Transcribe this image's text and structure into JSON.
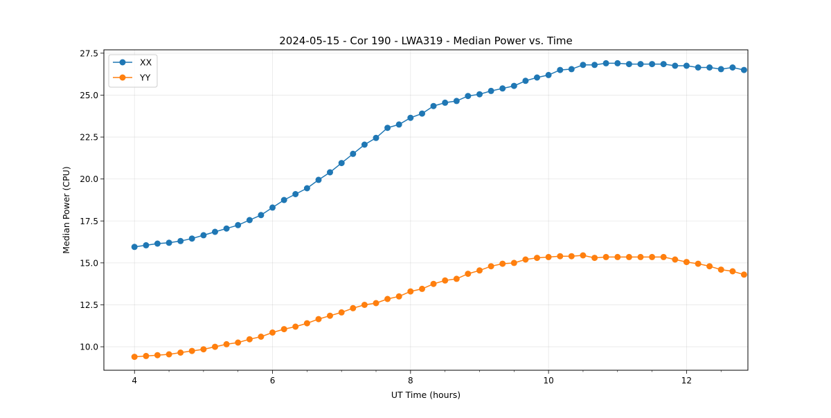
{
  "chart_data": {
    "type": "line",
    "title": "2024-05-15 - Cor 190 - LWA319 - Median Power vs. Time",
    "xlabel": "UT Time (hours)",
    "ylabel": "Median Power (CPU)",
    "xlim": [
      3.556,
      12.889
    ],
    "ylim": [
      8.6,
      27.7
    ],
    "xticks": [
      4,
      6,
      8,
      10,
      12
    ],
    "xtick_labels": [
      "4",
      "6",
      "8",
      "10",
      "12"
    ],
    "yticks": [
      10,
      12.5,
      15,
      17.5,
      20,
      22.5,
      25,
      27.5
    ],
    "ytick_labels": [
      "10.0",
      "12.5",
      "15.0",
      "17.5",
      "20.0",
      "22.5",
      "25.0",
      "27.5"
    ],
    "grid": true,
    "legend_position": "top-left",
    "x": [
      4.0,
      4.167,
      4.333,
      4.5,
      4.667,
      4.833,
      5.0,
      5.167,
      5.333,
      5.5,
      5.667,
      5.833,
      6.0,
      6.167,
      6.333,
      6.5,
      6.667,
      6.833,
      7.0,
      7.167,
      7.333,
      7.5,
      7.667,
      7.833,
      8.0,
      8.167,
      8.333,
      8.5,
      8.667,
      8.833,
      9.0,
      9.167,
      9.333,
      9.5,
      9.667,
      9.833,
      10.0,
      10.167,
      10.333,
      10.5,
      10.667,
      10.833,
      11.0,
      11.167,
      11.333,
      11.5,
      11.667,
      11.833,
      12.0,
      12.167,
      12.333,
      12.5,
      12.667,
      12.833
    ],
    "series": [
      {
        "name": "XX",
        "color": "#1f77b4",
        "values": [
          15.95,
          16.05,
          16.15,
          16.2,
          16.3,
          16.45,
          16.65,
          16.85,
          17.05,
          17.25,
          17.55,
          17.85,
          18.3,
          18.75,
          19.1,
          19.45,
          19.95,
          20.4,
          20.95,
          21.5,
          22.05,
          22.45,
          23.05,
          23.25,
          23.65,
          23.9,
          24.35,
          24.55,
          24.65,
          24.95,
          25.05,
          25.25,
          25.4,
          25.55,
          25.85,
          26.05,
          26.2,
          26.5,
          26.55,
          26.8,
          26.8,
          26.9,
          26.9,
          26.85,
          26.85,
          26.85,
          26.85,
          26.75,
          26.75,
          26.65,
          26.65,
          26.55,
          26.65,
          26.5
        ]
      },
      {
        "name": "YY",
        "color": "#ff7f0e",
        "values": [
          9.4,
          9.45,
          9.5,
          9.55,
          9.65,
          9.75,
          9.85,
          10.0,
          10.15,
          10.25,
          10.45,
          10.6,
          10.85,
          11.05,
          11.2,
          11.4,
          11.65,
          11.85,
          12.05,
          12.3,
          12.5,
          12.6,
          12.85,
          13.0,
          13.3,
          13.45,
          13.75,
          13.95,
          14.05,
          14.35,
          14.55,
          14.8,
          14.95,
          15.0,
          15.2,
          15.3,
          15.35,
          15.4,
          15.4,
          15.45,
          15.3,
          15.35,
          15.35,
          15.35,
          15.35,
          15.35,
          15.35,
          15.2,
          15.05,
          14.95,
          14.8,
          14.6,
          14.5,
          14.3
        ]
      }
    ]
  }
}
